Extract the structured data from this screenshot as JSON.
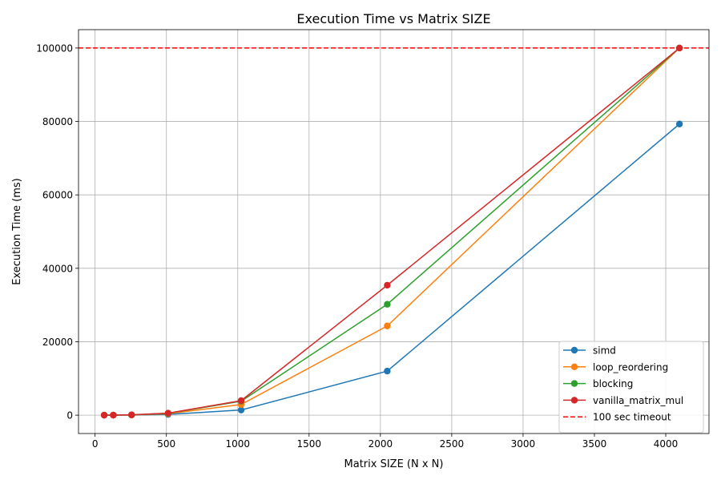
{
  "chart_data": {
    "type": "line",
    "title": "Execution Time vs Matrix SIZE",
    "xlabel": "Matrix SIZE (N x N)",
    "ylabel": "Execution Time (ms)",
    "xlim": [
      -116,
      4303
    ],
    "ylim": [
      -5000,
      105000
    ],
    "xticks": [
      0,
      500,
      1000,
      1500,
      2000,
      2500,
      3000,
      3500,
      4000
    ],
    "yticks": [
      0,
      20000,
      40000,
      60000,
      80000,
      100000
    ],
    "grid": true,
    "legend_position": "lower-right",
    "x": [
      64,
      128,
      256,
      512,
      1024,
      2048,
      4096
    ],
    "series": [
      {
        "name": "simd",
        "color": "#1f77b4",
        "values": [
          1,
          5,
          30,
          200,
          1400,
          12000,
          79300
        ]
      },
      {
        "name": "loop_reordering",
        "color": "#ff7f0e",
        "values": [
          2,
          10,
          60,
          400,
          2900,
          24300,
          100000
        ]
      },
      {
        "name": "blocking",
        "color": "#2ca02c",
        "values": [
          3,
          15,
          80,
          500,
          3800,
          30200,
          100000
        ]
      },
      {
        "name": "vanilla_matrix_mul",
        "color": "#d62728",
        "values": [
          3,
          16,
          90,
          550,
          3950,
          35400,
          100000
        ]
      }
    ],
    "reference_line": {
      "name": "100 sec timeout",
      "value": 100000,
      "color": "#ff0000",
      "style": "dashed"
    }
  }
}
